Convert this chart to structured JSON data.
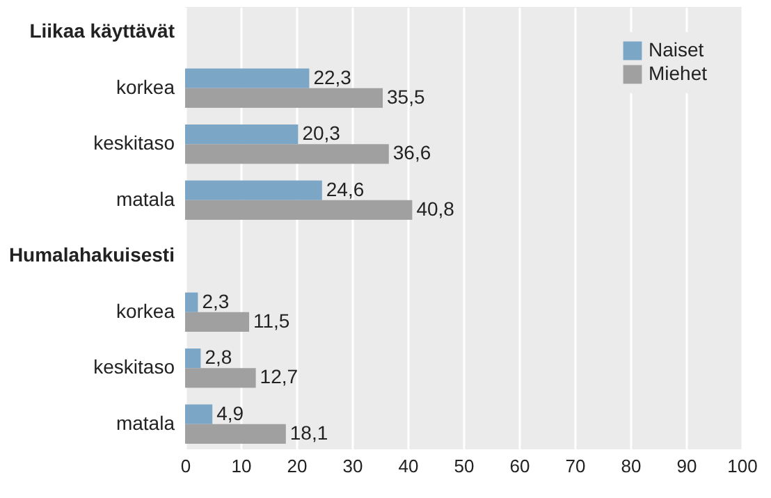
{
  "chart_data": {
    "type": "bar",
    "orientation": "horizontal",
    "categories": [
      "Liikaa käyttävät",
      "korkea",
      "keskitaso",
      "matala",
      "Humalahakuisesti",
      "korkea",
      "keskitaso",
      "matala"
    ],
    "series": [
      {
        "name": "Naiset",
        "color": "#7ba6c6",
        "values": [
          null,
          22.3,
          20.3,
          24.6,
          null,
          2.3,
          2.8,
          4.9
        ],
        "value_labels": [
          null,
          "22,3",
          "20,3",
          "24,6",
          null,
          "2,3",
          "2,8",
          "4,9"
        ]
      },
      {
        "name": "Miehet",
        "color": "#a0a0a0",
        "values": [
          null,
          35.5,
          36.6,
          40.8,
          null,
          11.5,
          12.7,
          18.1
        ],
        "value_labels": [
          null,
          "35,5",
          "36,6",
          "40,8",
          null,
          "11,5",
          "12,7",
          "18,1"
        ]
      }
    ],
    "xlim": [
      0,
      100
    ],
    "xticks": [
      0,
      10,
      20,
      30,
      40,
      50,
      60,
      70,
      80,
      90,
      100
    ],
    "grid": "x",
    "legend": "top right"
  }
}
